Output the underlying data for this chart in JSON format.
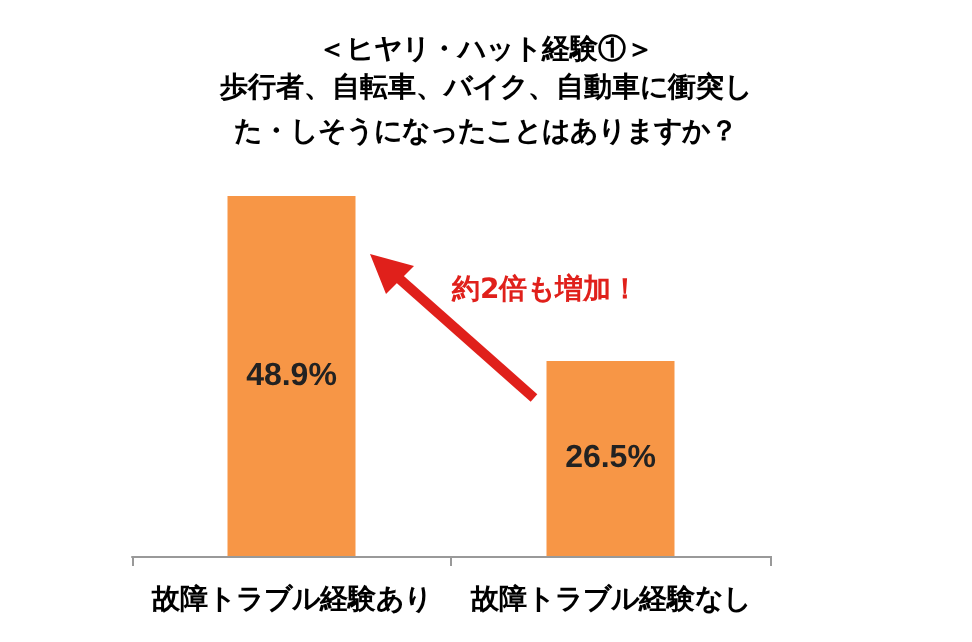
{
  "chart_data": {
    "type": "bar",
    "title": "＜ヒヤリ・ハット経験①＞",
    "subtitle": "歩行者、自転車、バイク、自動車に衝突した・しそうになったことはありますか？",
    "categories": [
      "故障トラブル経験あり",
      "故障トラブル経験なし"
    ],
    "values": [
      48.9,
      26.5
    ],
    "color": "#f79646",
    "value_labels": [
      "48.9%",
      "26.5%"
    ],
    "annotations": [
      "約2倍も増加！"
    ]
  }
}
